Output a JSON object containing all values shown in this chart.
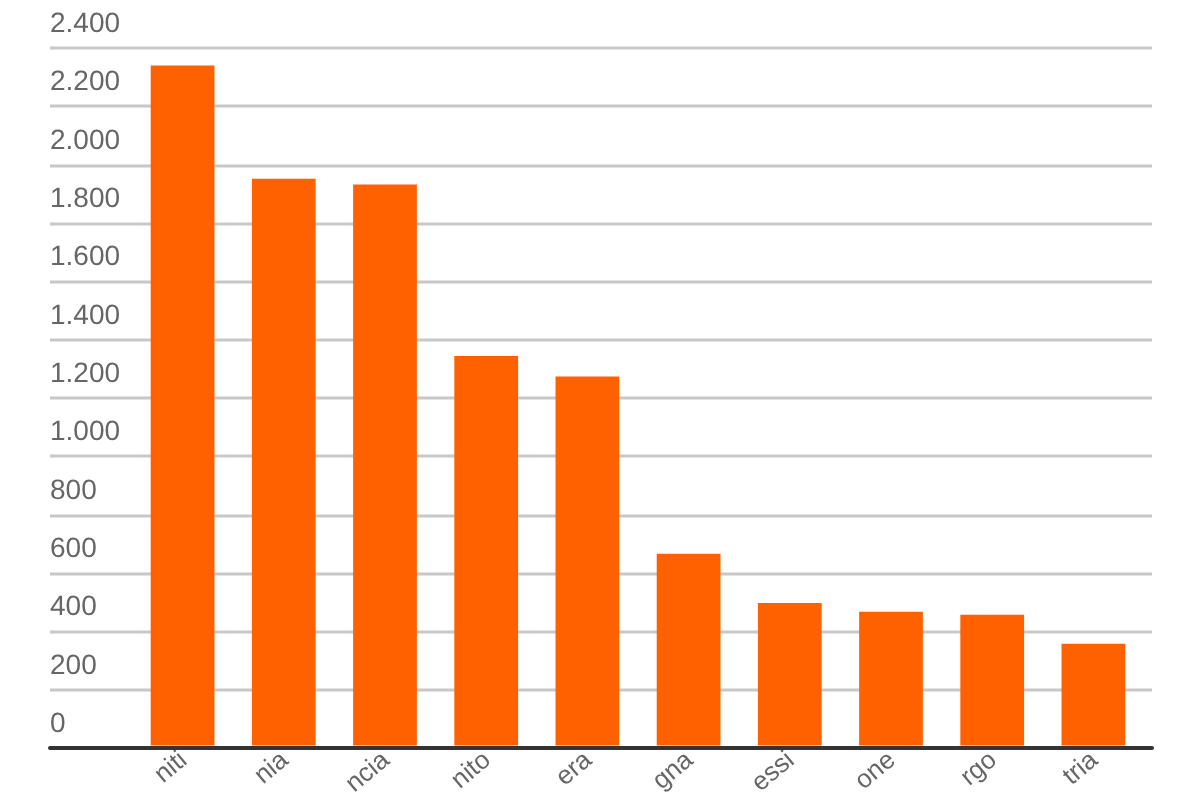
{
  "chart_data": {
    "type": "bar",
    "categories": [
      "niti",
      "nia",
      "ncia",
      "nito",
      "era",
      "gna",
      "essi",
      "one",
      "rgo",
      "tria"
    ],
    "values": [
      2340,
      1950,
      1930,
      1340,
      1270,
      660,
      490,
      460,
      450,
      350
    ],
    "color": "#ff6100",
    "ylim": [
      0,
      2400
    ],
    "yticks": [
      0,
      200,
      400,
      600,
      800,
      {
        "value": 1000,
        "label": "1.000"
      },
      {
        "value": 1200,
        "label": "1.200"
      },
      {
        "value": 1400,
        "label": "1.400"
      },
      {
        "value": 1600,
        "label": "1.600"
      },
      {
        "value": 1800,
        "label": "1.800"
      },
      {
        "value": 2000,
        "label": "2.000"
      },
      {
        "value": 2200,
        "label": "2.200"
      },
      {
        "value": 2400,
        "label": "2.400"
      }
    ],
    "grid": "y"
  }
}
